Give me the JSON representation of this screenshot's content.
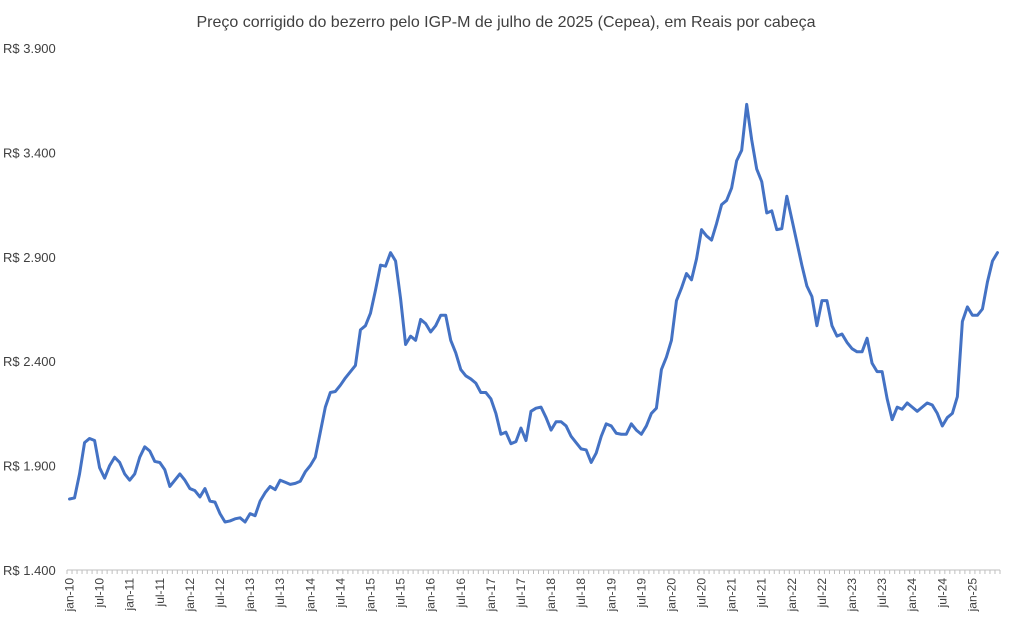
{
  "chart_data": {
    "type": "line",
    "title": "Preço corrigido do bezerro pelo IGP-M de julho de 2025 (Cepea), em Reais por cabeça",
    "xlabel": "",
    "ylabel": "",
    "ylim": [
      1400,
      3900
    ],
    "yticks": [
      1400,
      1900,
      2400,
      2900,
      3400,
      3900
    ],
    "ytick_labels": [
      "R$ 1.400",
      "R$ 1.900",
      "R$ 2.400",
      "R$ 2.900",
      "R$ 3.400",
      "R$ 3.900"
    ],
    "x_start": "jan-10",
    "x_end": "jul-25",
    "xtick_labels": [
      "jan-10",
      "jul-10",
      "jan-11",
      "jul-11",
      "jan-12",
      "jul-12",
      "jan-13",
      "jul-13",
      "jan-14",
      "jul-14",
      "jan-15",
      "jul-15",
      "jan-16",
      "jul-16",
      "jan-17",
      "jul-17",
      "jan-18",
      "jul-18",
      "jan-19",
      "jul-19",
      "jan-20",
      "jul-20",
      "jan-21",
      "jul-21",
      "jan-22",
      "jul-22",
      "jan-23",
      "jul-23",
      "jan-24",
      "jul-24",
      "jan-25"
    ],
    "gridlines": false,
    "legend": "none",
    "color": "#4472C4",
    "series": [
      {
        "values": [
          1740,
          1745,
          1860,
          2010,
          2030,
          2020,
          1890,
          1840,
          1900,
          1940,
          1915,
          1860,
          1830,
          1860,
          1940,
          1990,
          1970,
          1920,
          1915,
          1880,
          1800,
          1830,
          1860,
          1830,
          1790,
          1780,
          1750,
          1790,
          1730,
          1725,
          1670,
          1630,
          1635,
          1645,
          1650,
          1630,
          1670,
          1660,
          1730,
          1770,
          1800,
          1785,
          1830,
          1820,
          1810,
          1815,
          1825,
          1870,
          1900,
          1940,
          2060,
          2180,
          2250,
          2255,
          2285,
          2320,
          2350,
          2380,
          2550,
          2570,
          2630,
          2740,
          2860,
          2855,
          2920,
          2880,
          2700,
          2480,
          2520,
          2500,
          2600,
          2580,
          2540,
          2570,
          2620,
          2620,
          2500,
          2440,
          2360,
          2330,
          2315,
          2295,
          2250,
          2250,
          2220,
          2150,
          2050,
          2060,
          2005,
          2015,
          2080,
          2020,
          2160,
          2175,
          2180,
          2130,
          2070,
          2110,
          2110,
          2090,
          2040,
          2010,
          1980,
          1975,
          1915,
          1960,
          2040,
          2100,
          2090,
          2055,
          2050,
          2050,
          2100,
          2070,
          2050,
          2090,
          2150,
          2175,
          2360,
          2420,
          2500,
          2690,
          2750,
          2820,
          2790,
          2890,
          3030,
          3000,
          2980,
          3060,
          3150,
          3170,
          3230,
          3360,
          3410,
          3630,
          3460,
          3320,
          3260,
          3110,
          3120,
          3030,
          3035,
          3190,
          3080,
          2970,
          2860,
          2760,
          2710,
          2570,
          2690,
          2690,
          2570,
          2520,
          2530,
          2490,
          2460,
          2445,
          2445,
          2510,
          2390,
          2350,
          2350,
          2220,
          2120,
          2180,
          2170,
          2200,
          2180,
          2160,
          2180,
          2200,
          2190,
          2150,
          2090,
          2130,
          2150,
          2230,
          2590,
          2660,
          2620,
          2620,
          2650,
          2780,
          2880,
          2920
        ]
      }
    ]
  }
}
